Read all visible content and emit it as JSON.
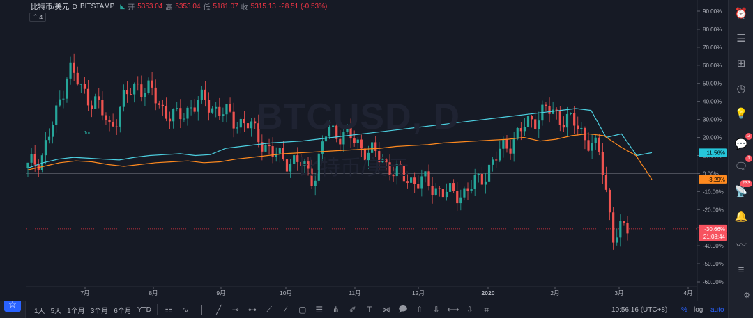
{
  "header": {
    "symbol": "比特币/美元",
    "interval": "D",
    "exchange": "BITSTAMP",
    "open_label": "开",
    "open": "5353.04",
    "high_label": "高",
    "high": "5353.04",
    "low_label": "低",
    "low": "5181.07",
    "close_label": "收",
    "close": "5315.13",
    "change": "-28.51 (-0.53%)"
  },
  "counter": "4",
  "watermark": {
    "line1": "BTCUSD, D",
    "line2": "比特币/美元"
  },
  "annotation": "Jun",
  "y_ticks": [
    "90.00%",
    "80.00%",
    "70.00%",
    "60.00%",
    "50.00%",
    "40.00%",
    "30.00%",
    "20.00%",
    "10.00%",
    "0.00%",
    "-10.00%",
    "-20.00%",
    "-30.00%",
    "-40.00%",
    "-50.00%",
    "-60.00%"
  ],
  "x_ticks": [
    "7月",
    "8月",
    "9月",
    "10月",
    "11月",
    "12月",
    "2020",
    "2月",
    "3月",
    "4月"
  ],
  "price_tags": {
    "cyan": "11.56%",
    "orange": "-3.29%",
    "red": "-30.66%",
    "countdown": "21:03:44"
  },
  "bottom": {
    "ranges": [
      "1天",
      "5天",
      "1个月",
      "3个月",
      "6个月",
      "YTD"
    ],
    "time": "10:56:16 (UTC+8)",
    "percent": "%",
    "log": "log",
    "auto": "auto"
  },
  "right_badges": [
    "2",
    "1",
    "233"
  ],
  "colors": {
    "up": "#26a69a",
    "down": "#ef5350",
    "cyan": "#4dd0e1",
    "orange": "#ff8a1f",
    "ref": "#f23645",
    "accent": "#2962ff",
    "bg": "#161a25"
  },
  "chart_data": {
    "type": "candlestick+line",
    "x_labels": [
      "7月",
      "8月",
      "9月",
      "10月",
      "11月",
      "12月",
      "2020",
      "2月",
      "3月",
      "4月"
    ],
    "ylim": [
      -60,
      90
    ],
    "y_unit": "%",
    "series": [
      {
        "kind": "line",
        "color": "#4dd0e1",
        "values": [
          3,
          6,
          8,
          9,
          8.5,
          8,
          7.5,
          9,
          10,
          10.5,
          11,
          10,
          10.5,
          14,
          15,
          16,
          17,
          17.5,
          18,
          19,
          20,
          21,
          22,
          23,
          24,
          25,
          26,
          27,
          28,
          29,
          30,
          31,
          32,
          33,
          34,
          35,
          36,
          35,
          20,
          22,
          10,
          11.56
        ]
      },
      {
        "kind": "line",
        "color": "#ff8a1f",
        "values": [
          2,
          4,
          6,
          7,
          6.5,
          5,
          4,
          5,
          6,
          6.5,
          7,
          6,
          6.5,
          8,
          9,
          10,
          11,
          11.5,
          12,
          12.5,
          13,
          13.5,
          14,
          15,
          15.5,
          16,
          17,
          17.5,
          18,
          18.5,
          19,
          20,
          18,
          19,
          21,
          22,
          21,
          15,
          10,
          -3.29
        ]
      },
      {
        "kind": "candle",
        "values": [
          3,
          10,
          30,
          60,
          45,
          40,
          25,
          40,
          50,
          45,
          35,
          30,
          38,
          40,
          35,
          30,
          28,
          20,
          10,
          8,
          5,
          -2,
          25,
          22,
          18,
          12,
          8,
          0,
          -3,
          -5,
          -8,
          -12,
          -10,
          -5,
          5,
          15,
          22,
          30,
          35,
          32,
          28,
          20,
          10,
          -35,
          -30
        ]
      }
    ],
    "reference_line": -30.66
  }
}
